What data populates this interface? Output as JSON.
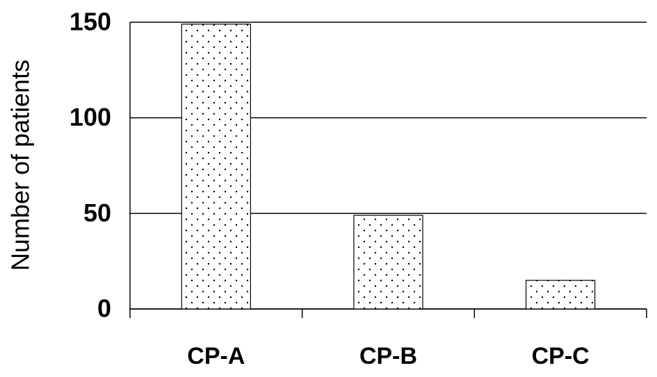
{
  "chart_data": {
    "type": "bar",
    "y_label": "Number of patients",
    "categories": [
      "CP-A",
      "CP-B",
      "CP-C"
    ],
    "values": [
      149,
      49,
      15
    ],
    "color": "#000000",
    "pattern": "dots",
    "ylim": [
      0,
      150
    ],
    "yticks": [
      0,
      50,
      100,
      150
    ],
    "grid": true
  }
}
